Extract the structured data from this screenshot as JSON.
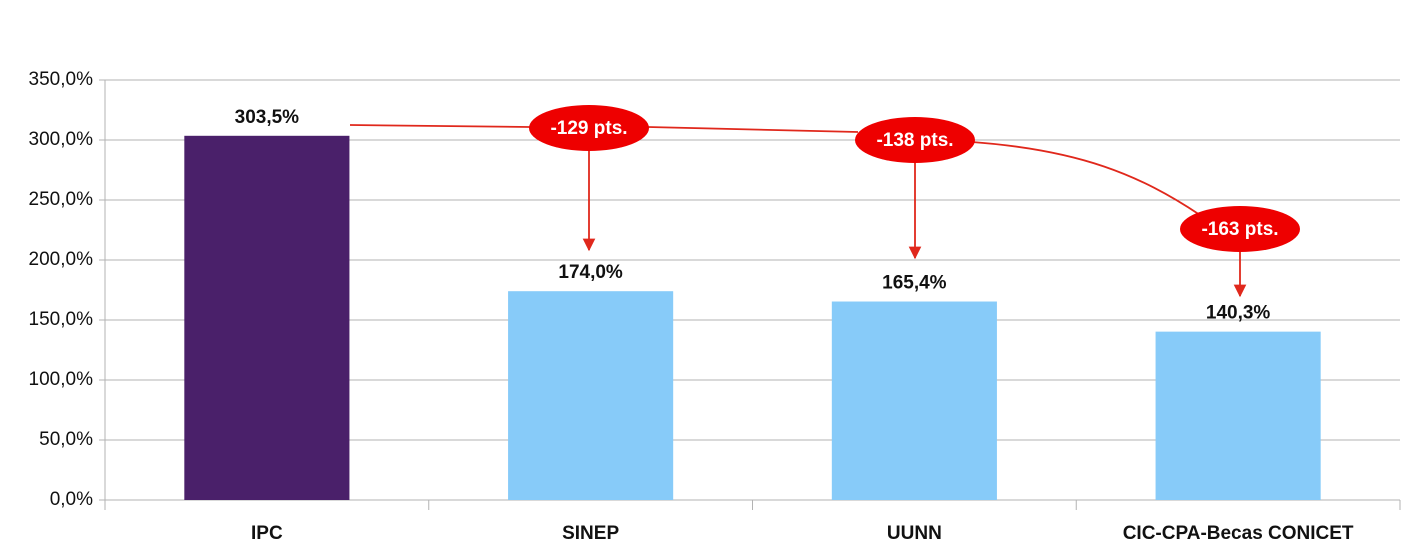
{
  "chart_data": {
    "type": "bar",
    "categories": [
      "IPC",
      "SINEP",
      "UUNN",
      "CIC-CPA-Becas CONICET"
    ],
    "values": [
      303.5,
      174.0,
      165.4,
      140.3
    ],
    "value_labels": [
      "303,5%",
      "174,0%",
      "165,4%",
      "140,3%"
    ],
    "colors": [
      "#4a206a",
      "#87cbf9",
      "#87cbf9",
      "#87cbf9"
    ],
    "ylim": [
      0,
      350
    ],
    "yticks": [
      {
        "value": 0,
        "label": "0,0%"
      },
      {
        "value": 50,
        "label": "50,0%"
      },
      {
        "value": 100,
        "label": "100,0%"
      },
      {
        "value": 150,
        "label": "150,0%"
      },
      {
        "value": 200,
        "label": "200,0%"
      },
      {
        "value": 250,
        "label": "250,0%"
      },
      {
        "value": 300,
        "label": "300,0%"
      },
      {
        "value": 350,
        "label": "350,0%"
      }
    ],
    "grid": true,
    "annotations": [
      "-129 pts.",
      "-138 pts.",
      "-163 pts."
    ]
  }
}
